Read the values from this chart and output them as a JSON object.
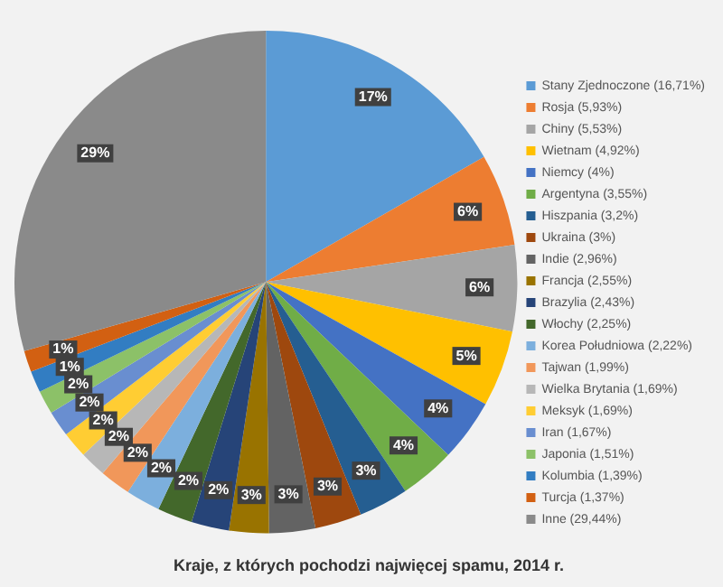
{
  "chart_data": {
    "type": "pie",
    "title": "Kraje, z których pochodzi najwięcej spamu, 2014 r.",
    "categories": [
      "Stany Zjednoczone (16,71%)",
      "Rosja (5,93%)",
      "Chiny (5,53%)",
      "Wietnam (4,92%)",
      "Niemcy (4%)",
      "Argentyna (3,55%)",
      "Hiszpania (3,2%)",
      "Ukraina (3%)",
      "Indie (2,96%)",
      "Francja (2,55%)",
      "Brazylia (2,43%)",
      "Włochy (2,25%)",
      "Korea Południowa (2,22%)",
      "Tajwan (1,99%)",
      "Wielka Brytania (1,69%)",
      "Meksyk (1,69%)",
      "Iran (1,67%)",
      "Japonia (1,51%)",
      "Kolumbia (1,39%)",
      "Turcja (1,37%)",
      "Inne (29,44%)"
    ],
    "values": [
      16.71,
      5.93,
      5.53,
      4.92,
      4,
      3.55,
      3.2,
      3,
      2.96,
      2.55,
      2.43,
      2.25,
      2.22,
      1.99,
      1.69,
      1.69,
      1.67,
      1.51,
      1.39,
      1.37,
      29.44
    ],
    "value_labels": [
      "17%",
      "6%",
      "6%",
      "5%",
      "4%",
      "4%",
      "3%",
      "3%",
      "3%",
      "3%",
      "2%",
      "2%",
      "2%",
      "2%",
      "2%",
      "2%",
      "2%",
      "2%",
      "1%",
      "1%",
      "29%"
    ],
    "colors": [
      "#5b9bd5",
      "#ed7d31",
      "#a5a5a5",
      "#ffc000",
      "#4472c4",
      "#70ad47",
      "#255e91",
      "#9e480e",
      "#636363",
      "#997300",
      "#264478",
      "#43682b",
      "#7cafdd",
      "#f1975a",
      "#b7b7b7",
      "#ffcd33",
      "#698ed0",
      "#8cc168",
      "#327dc2",
      "#d26012",
      "#8a8a8a"
    ],
    "legend": "right"
  }
}
